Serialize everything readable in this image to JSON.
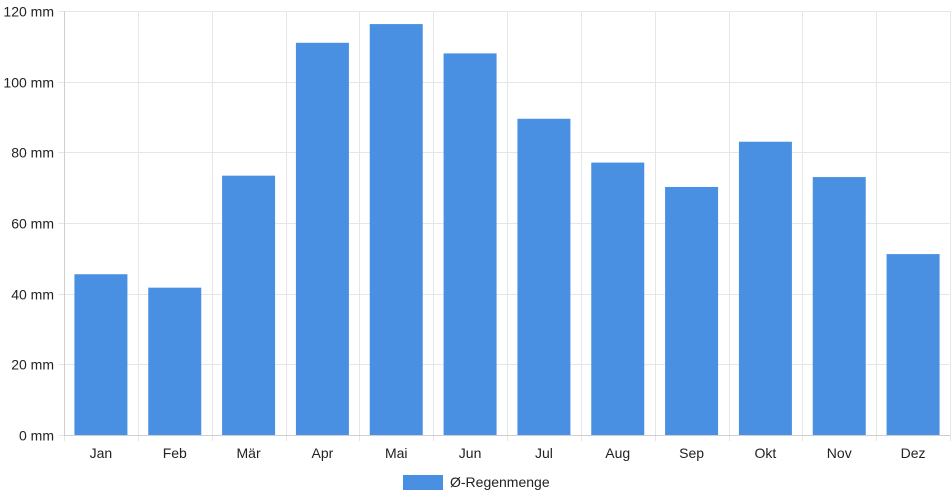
{
  "chart_data": {
    "type": "bar",
    "title": "",
    "xlabel": "",
    "ylabel": "",
    "categories": [
      "Jan",
      "Feb",
      "Mär",
      "Apr",
      "Mai",
      "Jun",
      "Jul",
      "Aug",
      "Sep",
      "Okt",
      "Nov",
      "Dez"
    ],
    "series": [
      {
        "name": "Ø-Regenmenge",
        "color": "#4a90e2",
        "values": [
          45.5,
          41.7,
          73.4,
          111.0,
          116.3,
          108.0,
          89.5,
          77.1,
          70.2,
          83.0,
          73.0,
          51.2
        ]
      }
    ],
    "ylim": [
      0,
      120
    ],
    "yticks": [
      0,
      20,
      40,
      60,
      80,
      100,
      120
    ],
    "ytick_unit": "mm",
    "ytick_labels": [
      "0 mm",
      "20 mm",
      "40 mm",
      "60 mm",
      "80 mm",
      "100 mm",
      "120 mm"
    ],
    "grid": true,
    "legend_position": "bottom-center"
  }
}
